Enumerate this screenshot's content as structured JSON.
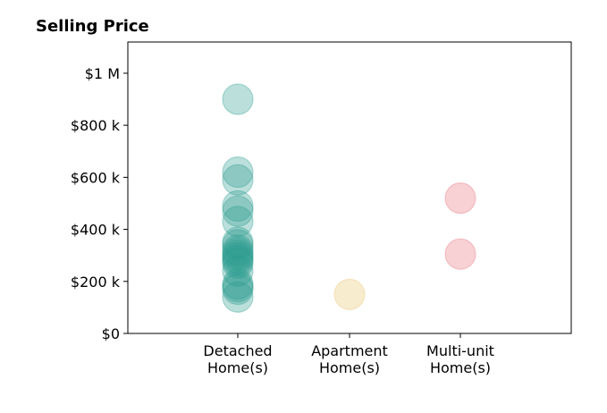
{
  "chart_data": {
    "type": "scatter",
    "title": "Selling Price",
    "xlabel": "",
    "ylabel": "",
    "ylim": [
      0,
      1120000
    ],
    "grid": false,
    "categories": [
      [
        "Detached",
        "Home(s)"
      ],
      [
        "Apartment",
        "Home(s)"
      ],
      [
        "Multi-unit",
        "Home(s)"
      ]
    ],
    "yticks": [
      {
        "value": 0,
        "label": "$0"
      },
      {
        "value": 200000,
        "label": "$200 k"
      },
      {
        "value": 400000,
        "label": "$400 k"
      },
      {
        "value": 600000,
        "label": "$600 k"
      },
      {
        "value": 800000,
        "label": "$800 k"
      },
      {
        "value": 1000000,
        "label": "$1 M"
      }
    ],
    "series": [
      {
        "category": "Detached Home(s)",
        "color": "#2a9d8f",
        "values": [
          900000,
          620000,
          590000,
          490000,
          470000,
          430000,
          350000,
          340000,
          320000,
          310000,
          300000,
          290000,
          280000,
          270000,
          240000,
          190000,
          180000,
          170000,
          140000
        ]
      },
      {
        "category": "Apartment Home(s)",
        "color": "#e9c46a",
        "values": [
          150000
        ]
      },
      {
        "category": "Multi-unit Home(s)",
        "color": "#e76f7a",
        "values": [
          520000,
          305000
        ]
      }
    ]
  }
}
